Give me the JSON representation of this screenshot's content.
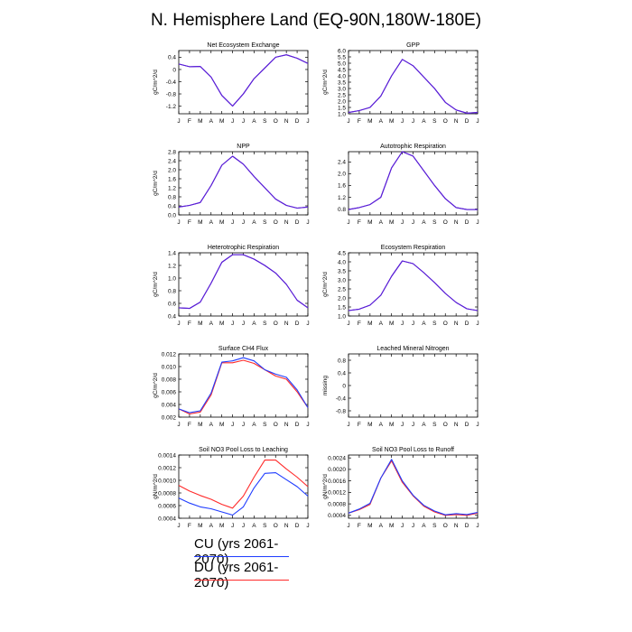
{
  "title": "N. Hemisphere Land (EQ-90N,180W-180E)",
  "months": [
    "J",
    "F",
    "M",
    "A",
    "M",
    "J",
    "J",
    "A",
    "S",
    "O",
    "N",
    "D",
    "J"
  ],
  "colors": {
    "CU": "#1f3cff",
    "DU": "#ff2a2a",
    "overlap": "#5a1fd6"
  },
  "legend": [
    {
      "label": "CU (yrs 2061-2070)",
      "color": "#1f3cff"
    },
    {
      "label": "DU (yrs 2061-2070)",
      "color": "#ff2a2a"
    }
  ],
  "chart_data": [
    {
      "type": "line",
      "title": "Net Ecosystem Exchange",
      "ylabel": "gC/m^2/d",
      "ylim": [
        -1.45,
        0.62
      ],
      "yticks": [
        0.4,
        0,
        -0.4,
        -0.8,
        -1.2
      ],
      "ytick_labels": [
        "0.4",
        "0",
        "-0.4",
        "-0.8",
        "-1.2"
      ],
      "series": [
        {
          "name": "CU",
          "values": [
            0.18,
            0.09,
            0.1,
            -0.25,
            -0.85,
            -1.2,
            -0.8,
            -0.3,
            0.05,
            0.4,
            0.48,
            0.37,
            0.2
          ]
        },
        {
          "name": "DU",
          "values": [
            0.18,
            0.09,
            0.1,
            -0.25,
            -0.85,
            -1.2,
            -0.8,
            -0.3,
            0.05,
            0.4,
            0.48,
            0.37,
            0.2
          ]
        }
      ]
    },
    {
      "type": "line",
      "title": "GPP",
      "ylabel": "gC/m^2/d",
      "ylim": [
        1.0,
        6.0
      ],
      "yticks": [
        1.0,
        1.5,
        2.0,
        2.5,
        3.0,
        3.5,
        4.0,
        4.5,
        5.0,
        5.5,
        6.0
      ],
      "ytick_labels": [
        "1.0",
        "1.5",
        "2.0",
        "2.5",
        "3.0",
        "3.5",
        "4.0",
        "4.5",
        "5.0",
        "5.5",
        "6.0"
      ],
      "series": [
        {
          "name": "CU",
          "values": [
            1.1,
            1.25,
            1.5,
            2.4,
            4.0,
            5.3,
            4.8,
            3.9,
            3.0,
            1.9,
            1.3,
            1.05,
            1.1
          ]
        },
        {
          "name": "DU",
          "values": [
            1.1,
            1.25,
            1.5,
            2.4,
            4.0,
            5.3,
            4.8,
            3.9,
            3.0,
            1.9,
            1.3,
            1.05,
            1.1
          ]
        }
      ]
    },
    {
      "type": "line",
      "title": "NPP",
      "ylabel": "gC/m^2/d",
      "ylim": [
        0,
        2.8
      ],
      "yticks": [
        0,
        0.4,
        0.8,
        1.2,
        1.6,
        2.0,
        2.4,
        2.8
      ],
      "ytick_labels": [
        "0.0",
        "0.4",
        "0.8",
        "1.2",
        "1.6",
        "2.0",
        "2.4",
        "2.8"
      ],
      "series": [
        {
          "name": "CU",
          "values": [
            0.35,
            0.42,
            0.55,
            1.3,
            2.2,
            2.6,
            2.25,
            1.7,
            1.2,
            0.7,
            0.42,
            0.3,
            0.35
          ]
        },
        {
          "name": "DU",
          "values": [
            0.35,
            0.42,
            0.55,
            1.3,
            2.2,
            2.6,
            2.25,
            1.7,
            1.2,
            0.7,
            0.42,
            0.3,
            0.35
          ]
        }
      ]
    },
    {
      "type": "line",
      "title": "Autotrophic Respiration",
      "ylabel": "",
      "ylim": [
        0.6,
        2.75
      ],
      "yticks": [
        0.8,
        1.2,
        1.6,
        2.0,
        2.4
      ],
      "ytick_labels": [
        "0.8",
        "1.2",
        "1.6",
        "2.0",
        "2.4"
      ],
      "series": [
        {
          "name": "CU",
          "values": [
            0.78,
            0.85,
            0.95,
            1.2,
            2.2,
            2.75,
            2.6,
            2.1,
            1.6,
            1.15,
            0.85,
            0.78,
            0.78
          ]
        },
        {
          "name": "DU",
          "values": [
            0.78,
            0.85,
            0.95,
            1.2,
            2.2,
            2.75,
            2.6,
            2.1,
            1.6,
            1.15,
            0.85,
            0.78,
            0.78
          ]
        }
      ]
    },
    {
      "type": "line",
      "title": "Heterotrophic Respiration",
      "ylabel": "gC/m^2/d",
      "ylim": [
        0.4,
        1.4
      ],
      "yticks": [
        0.4,
        0.6,
        0.8,
        1.0,
        1.2,
        1.4
      ],
      "ytick_labels": [
        "0.4",
        "0.6",
        "0.8",
        "1.0",
        "1.2",
        "1.4"
      ],
      "series": [
        {
          "name": "CU",
          "values": [
            0.53,
            0.52,
            0.62,
            0.92,
            1.25,
            1.37,
            1.37,
            1.3,
            1.2,
            1.08,
            0.9,
            0.65,
            0.53
          ]
        },
        {
          "name": "DU",
          "values": [
            0.53,
            0.52,
            0.62,
            0.92,
            1.25,
            1.37,
            1.37,
            1.3,
            1.2,
            1.08,
            0.9,
            0.65,
            0.53
          ]
        }
      ]
    },
    {
      "type": "line",
      "title": "Ecosystem Respiration",
      "ylabel": "gC/m^2/d",
      "ylim": [
        1.0,
        4.5
      ],
      "yticks": [
        1.0,
        1.5,
        2.0,
        2.5,
        3.0,
        3.5,
        4.0,
        4.5
      ],
      "ytick_labels": [
        "1.0",
        "1.5",
        "2.0",
        "2.5",
        "3.0",
        "3.5",
        "4.0",
        "4.5"
      ],
      "series": [
        {
          "name": "CU",
          "values": [
            1.3,
            1.38,
            1.6,
            2.15,
            3.2,
            4.05,
            3.9,
            3.4,
            2.85,
            2.25,
            1.75,
            1.4,
            1.3
          ]
        },
        {
          "name": "DU",
          "values": [
            1.3,
            1.38,
            1.6,
            2.15,
            3.2,
            4.05,
            3.9,
            3.4,
            2.85,
            2.25,
            1.75,
            1.4,
            1.3
          ]
        }
      ]
    },
    {
      "type": "line",
      "title": "Surface CH4 Flux",
      "ylabel": "gC/m^2/d",
      "ylim": [
        0.002,
        0.012
      ],
      "yticks": [
        0.002,
        0.004,
        0.006,
        0.008,
        0.01,
        0.012
      ],
      "ytick_labels": [
        "0.002",
        "0.004",
        "0.006",
        "0.008",
        "0.010",
        "0.012"
      ],
      "series": [
        {
          "name": "CU",
          "values": [
            0.0033,
            0.0027,
            0.003,
            0.0058,
            0.0107,
            0.0109,
            0.0114,
            0.0109,
            0.0095,
            0.0088,
            0.0083,
            0.0063,
            0.0035
          ]
        },
        {
          "name": "DU",
          "values": [
            0.0033,
            0.0025,
            0.0028,
            0.0055,
            0.0106,
            0.0106,
            0.011,
            0.0105,
            0.0095,
            0.0085,
            0.008,
            0.006,
            0.0035
          ]
        }
      ]
    },
    {
      "type": "line",
      "title": "Leached Mineral Nitrogen",
      "ylabel": "missing",
      "ylim": [
        -1,
        1
      ],
      "yticks": [
        0.8,
        0.4,
        0,
        -0.4,
        -0.8
      ],
      "ytick_labels": [
        "0.8",
        "0.4",
        "0",
        "-0.4",
        "-0.8"
      ],
      "series": []
    },
    {
      "type": "line",
      "title": "Soil NO3 Pool Loss to Leaching",
      "ylabel": "gN/m^2/d",
      "ylim": [
        0.0004,
        0.0014
      ],
      "yticks": [
        0.0004,
        0.0006,
        0.0008,
        0.001,
        0.0012,
        0.0014
      ],
      "ytick_labels": [
        "0.0004",
        "0.0006",
        "0.0008",
        "0.0010",
        "0.0012",
        "0.0014"
      ],
      "series": [
        {
          "name": "CU",
          "values": [
            0.00072,
            0.00064,
            0.00058,
            0.00055,
            0.0005,
            0.00045,
            0.00058,
            0.00088,
            0.00111,
            0.00112,
            0.00101,
            0.0009,
            0.00075
          ]
        },
        {
          "name": "DU",
          "values": [
            0.00092,
            0.00083,
            0.00076,
            0.0007,
            0.00062,
            0.00056,
            0.00075,
            0.00105,
            0.00132,
            0.00132,
            0.00118,
            0.00105,
            0.0009
          ]
        }
      ]
    },
    {
      "type": "line",
      "title": "Soil NO3 Pool Loss to Runoff",
      "ylabel": "gN/m^2/d",
      "ylim": [
        0.0003,
        0.0025
      ],
      "yticks": [
        0.0004,
        0.0008,
        0.0012,
        0.0016,
        0.002,
        0.0024
      ],
      "ytick_labels": [
        "0.0004",
        "0.0008",
        "0.0012",
        "0.0016",
        "0.0020",
        "0.0024"
      ],
      "series": [
        {
          "name": "CU",
          "values": [
            0.00048,
            0.00062,
            0.00082,
            0.0017,
            0.00235,
            0.0016,
            0.0011,
            0.00075,
            0.00055,
            0.00042,
            0.00046,
            0.00043,
            0.0005
          ]
        },
        {
          "name": "DU",
          "values": [
            0.00048,
            0.0006,
            0.00078,
            0.0017,
            0.0023,
            0.00155,
            0.00108,
            0.00072,
            0.00052,
            0.0004,
            0.00043,
            0.0004,
            0.00048
          ]
        }
      ]
    }
  ]
}
